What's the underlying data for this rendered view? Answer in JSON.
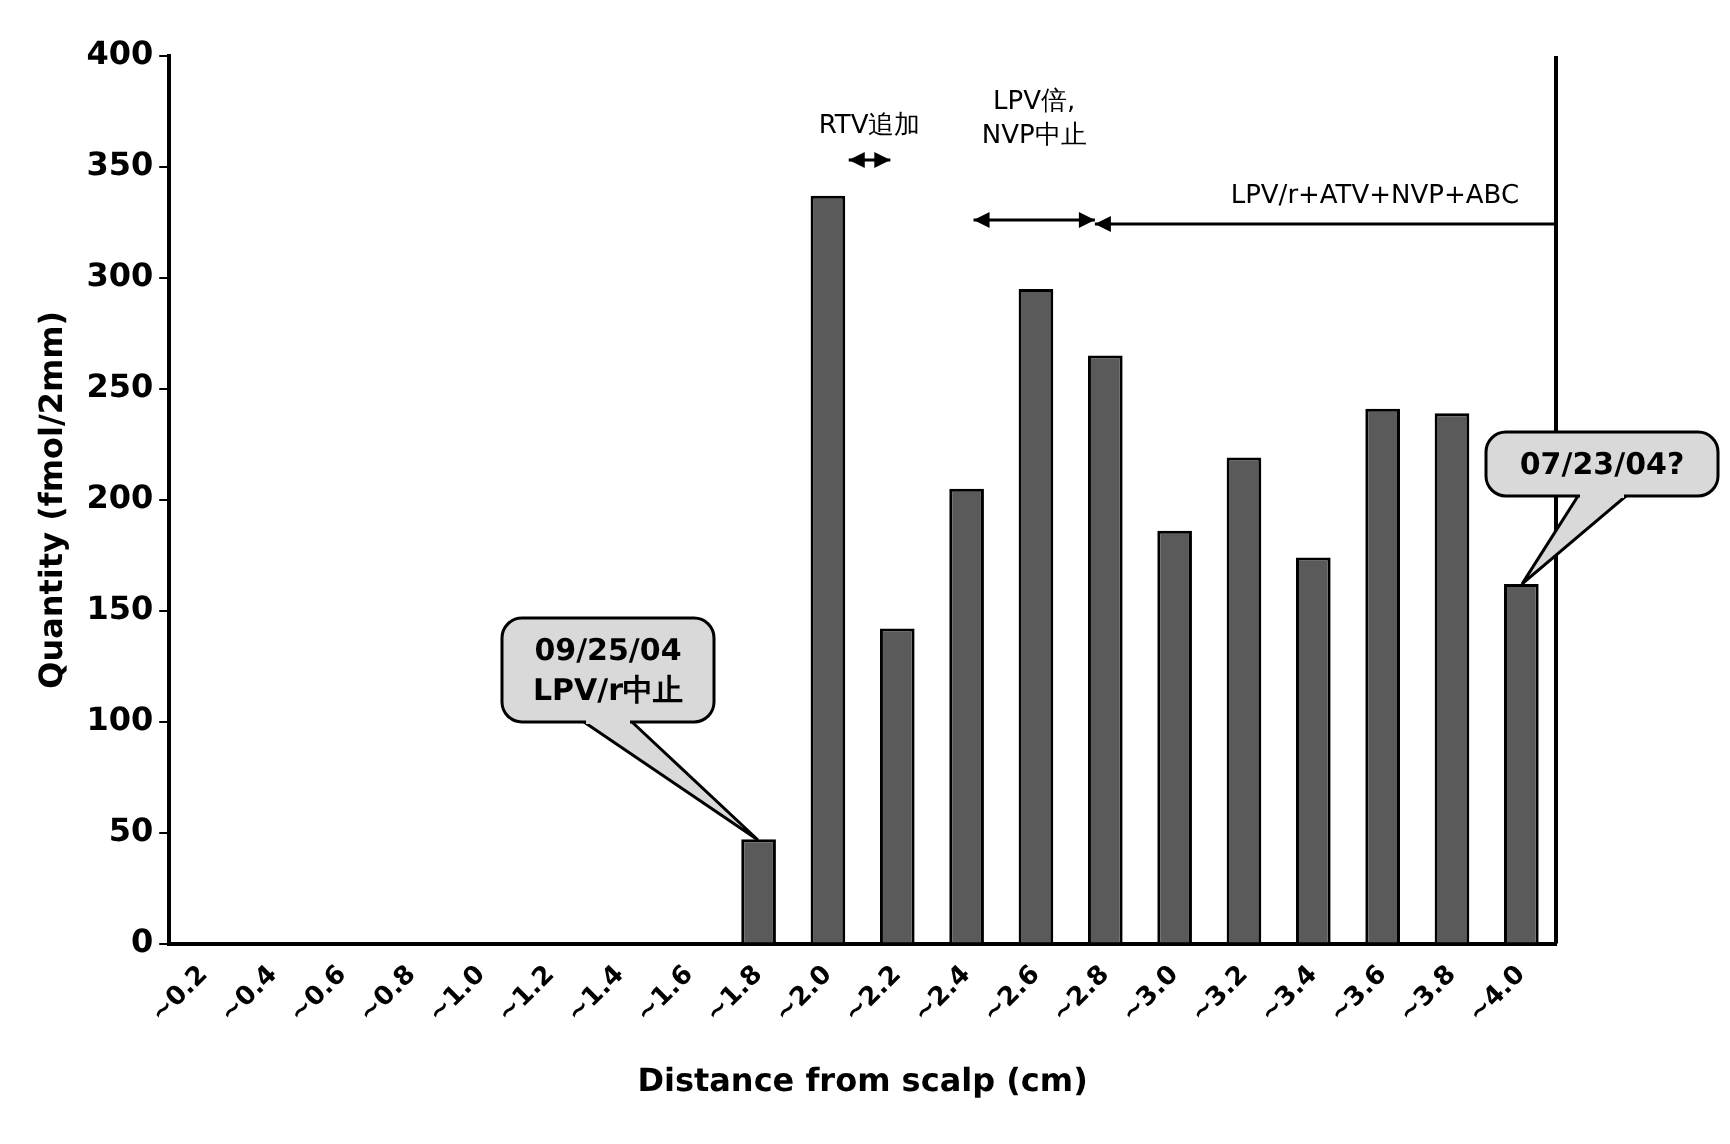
{
  "chart_data": {
    "type": "bar",
    "xlabel": "Distance from scalp (cm)",
    "ylabel": "Quantity (fmol/2mm)",
    "categories": [
      "~0.2",
      "~0.4",
      "~0.6",
      "~0.8",
      "~1.0",
      "~1.2",
      "~1.4",
      "~1.6",
      "~1.8",
      "~2.0",
      "~2.2",
      "~2.4",
      "~2.6",
      "~2.8",
      "~3.0",
      "~3.2",
      "~3.4",
      "~3.6",
      "~3.8",
      "~4.0"
    ],
    "values": [
      0,
      0,
      0,
      0,
      0,
      0,
      0,
      0,
      47,
      337,
      142,
      205,
      295,
      265,
      186,
      219,
      174,
      241,
      239,
      162
    ],
    "color": "#5a5a5a",
    "ylim": [
      0,
      400
    ],
    "yticks": [
      0,
      50,
      100,
      150,
      200,
      250,
      300,
      350,
      400
    ],
    "grid": false,
    "legend": false,
    "annotations": [
      "RTV追加",
      "LPV倍,\nNVP中止",
      "LPV/r+ATV+NVP+ABC",
      "09/25/04\nLPV/r中止",
      "07/23/04?"
    ]
  }
}
